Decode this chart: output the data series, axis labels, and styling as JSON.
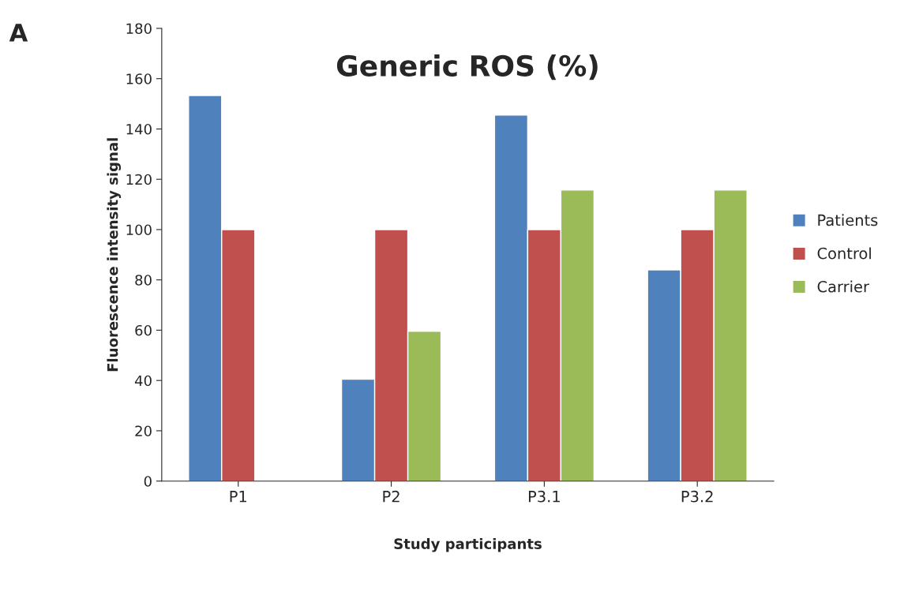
{
  "chart_data": {
    "type": "bar",
    "title": "Generic ROS (%)",
    "xlabel": "Study participants",
    "ylabel": "Fluorescence intensity signal",
    "categories": [
      "P1",
      "P2",
      "P3.1",
      "P3.2"
    ],
    "series": [
      {
        "name": "Patients",
        "color": "#4f81bd",
        "values": [
          153.3,
          40.5,
          145.5,
          84
        ]
      },
      {
        "name": "Control",
        "color": "#c0504d",
        "values": [
          100,
          100,
          100,
          100
        ]
      },
      {
        "name": "Carrier",
        "color": "#9bbb59",
        "values": [
          null,
          59.6,
          115.7,
          115.7
        ]
      }
    ],
    "ylim": [
      0,
      180
    ],
    "yticks": [
      0,
      20,
      40,
      60,
      80,
      100,
      120,
      140,
      160,
      180
    ],
    "grid": false,
    "legend": "right",
    "annotations": [
      "A"
    ]
  }
}
